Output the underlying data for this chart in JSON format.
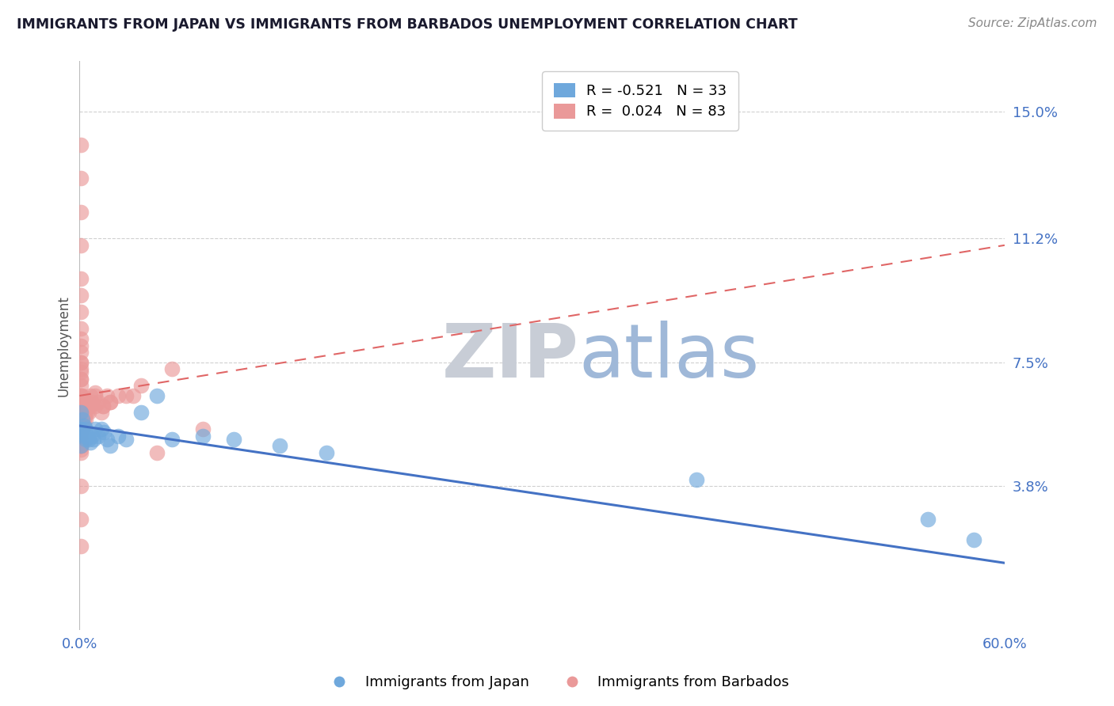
{
  "title": "IMMIGRANTS FROM JAPAN VS IMMIGRANTS FROM BARBADOS UNEMPLOYMENT CORRELATION CHART",
  "source": "Source: ZipAtlas.com",
  "xlabel_japan": "Immigrants from Japan",
  "xlabel_barbados": "Immigrants from Barbados",
  "ylabel": "Unemployment",
  "xlim": [
    0.0,
    0.6
  ],
  "ylim": [
    -0.005,
    0.165
  ],
  "yticks": [
    0.038,
    0.075,
    0.112,
    0.15
  ],
  "ytick_labels": [
    "3.8%",
    "7.5%",
    "11.2%",
    "15.0%"
  ],
  "xticks": [
    0.0,
    0.6
  ],
  "xtick_labels": [
    "0.0%",
    "60.0%"
  ],
  "legend_japan_r": "R = -0.521",
  "legend_japan_n": "N = 33",
  "legend_barbados_r": "R =  0.024",
  "legend_barbados_n": "N = 83",
  "color_japan": "#6fa8dc",
  "color_barbados": "#ea9999",
  "color_japan_line": "#4472c4",
  "color_barbados_line": "#e06666",
  "japan_x": [
    0.001,
    0.001,
    0.001,
    0.002,
    0.002,
    0.003,
    0.003,
    0.004,
    0.004,
    0.005,
    0.006,
    0.007,
    0.008,
    0.009,
    0.01,
    0.012,
    0.014,
    0.016,
    0.018,
    0.02,
    0.025,
    0.03,
    0.04,
    0.05,
    0.06,
    0.08,
    0.1,
    0.13,
    0.16,
    0.4,
    0.55,
    0.58,
    0.001
  ],
  "japan_y": [
    0.055,
    0.06,
    0.055,
    0.058,
    0.054,
    0.056,
    0.053,
    0.055,
    0.052,
    0.053,
    0.052,
    0.051,
    0.053,
    0.052,
    0.055,
    0.053,
    0.055,
    0.054,
    0.052,
    0.05,
    0.053,
    0.052,
    0.06,
    0.065,
    0.052,
    0.053,
    0.052,
    0.05,
    0.048,
    0.04,
    0.028,
    0.022,
    0.05
  ],
  "barbados_x": [
    0.001,
    0.001,
    0.001,
    0.001,
    0.001,
    0.001,
    0.001,
    0.001,
    0.001,
    0.001,
    0.001,
    0.001,
    0.001,
    0.001,
    0.001,
    0.001,
    0.001,
    0.001,
    0.001,
    0.001,
    0.001,
    0.001,
    0.001,
    0.001,
    0.001,
    0.001,
    0.001,
    0.001,
    0.001,
    0.001,
    0.001,
    0.001,
    0.001,
    0.001,
    0.001,
    0.001,
    0.001,
    0.001,
    0.001,
    0.001,
    0.002,
    0.002,
    0.002,
    0.002,
    0.002,
    0.002,
    0.002,
    0.003,
    0.003,
    0.003,
    0.003,
    0.004,
    0.004,
    0.005,
    0.005,
    0.006,
    0.006,
    0.007,
    0.007,
    0.008,
    0.01,
    0.01,
    0.012,
    0.014,
    0.015,
    0.018,
    0.02,
    0.025,
    0.03,
    0.035,
    0.04,
    0.05,
    0.06,
    0.08,
    0.01,
    0.015,
    0.02,
    0.001,
    0.001,
    0.001,
    0.001,
    0.001,
    0.001
  ],
  "barbados_y": [
    0.14,
    0.13,
    0.12,
    0.11,
    0.1,
    0.095,
    0.09,
    0.085,
    0.082,
    0.08,
    0.078,
    0.075,
    0.073,
    0.07,
    0.068,
    0.065,
    0.063,
    0.062,
    0.06,
    0.058,
    0.056,
    0.055,
    0.054,
    0.053,
    0.052,
    0.05,
    0.05,
    0.05,
    0.05,
    0.05,
    0.05,
    0.05,
    0.049,
    0.048,
    0.065,
    0.065,
    0.063,
    0.062,
    0.06,
    0.058,
    0.065,
    0.063,
    0.062,
    0.06,
    0.058,
    0.056,
    0.055,
    0.062,
    0.06,
    0.058,
    0.056,
    0.06,
    0.058,
    0.063,
    0.06,
    0.062,
    0.06,
    0.065,
    0.062,
    0.063,
    0.065,
    0.062,
    0.063,
    0.06,
    0.062,
    0.065,
    0.063,
    0.065,
    0.065,
    0.065,
    0.068,
    0.048,
    0.073,
    0.055,
    0.066,
    0.062,
    0.063,
    0.075,
    0.072,
    0.07,
    0.038,
    0.028,
    0.02
  ],
  "watermark_zip": "ZIP",
  "watermark_atlas": "atlas",
  "watermark_color_zip": "#c8cdd6",
  "watermark_color_atlas": "#9fb8d8",
  "background_color": "#ffffff",
  "grid_color": "#d0d0d0",
  "title_color": "#1a1a2e",
  "axis_label_color": "#555555",
  "tick_label_color": "#4472c4",
  "right_tick_color": "#4472c4"
}
